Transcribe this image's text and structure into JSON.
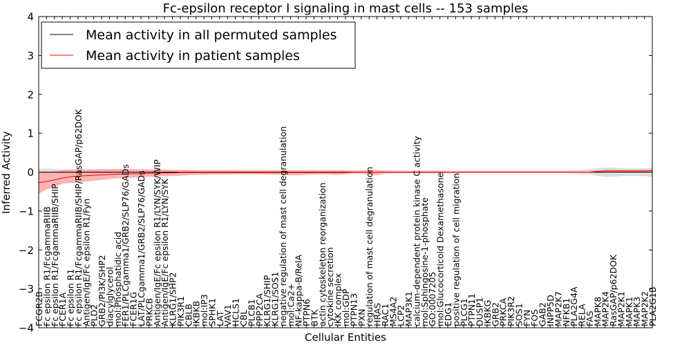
{
  "chart_data": {
    "type": "line",
    "title": "Fc-epsilon receptor I signaling in mast cells -- 153 samples",
    "xlabel": "Cellular Entities",
    "ylabel": "Inferred Activity",
    "ylim": [
      -4,
      4
    ],
    "yticks": [
      "−4",
      "−3",
      "−2",
      "−1",
      "0",
      "1",
      "2",
      "3",
      "4"
    ],
    "legend": {
      "placement": "top-left",
      "entries": [
        "Mean activity in all permuted samples",
        "Mean activity in patient samples"
      ]
    },
    "colors": {
      "permuted": "#000000",
      "patient": "#ff0000",
      "patient_band": "#ff9a9a",
      "permuted_band": "#c8c8c8"
    },
    "categories": [
      "FCGR2B",
      "Fc epsilon R1/FcgammaRIIB",
      "Fc epsilon R1/FcgammaRIIB/SHIP",
      "FCER1A",
      "Fc epsilon R1",
      "Fc epsilon R1/FcgammaRIIB/SHIP/RasGAP/p62DOK",
      "Antigen/IgE/Fc epsilon R1/Fyn",
      "PLD2",
      "GRB2/PI3K/SHP2",
      "diacylglycerol",
      "mol:Phosphatidic acid",
      "FER1/PLCgamma1/GRB2/SLP76/GADs",
      "FCER1G",
      "LAT/PLCgamma1/GRB2/SLP76/GADs",
      "PRKCB",
      "Antigen/IgE/Fc epsilon R1/LYN/SYK/WIP",
      "Antigen/IgE/Fc epsilon R1/LYN/SYK",
      "KLRG1/SHP2",
      "PIK3R1",
      "CBLB",
      "IKBKB",
      "mol:IP3",
      "SPHK1",
      "LAT",
      "VAV1",
      "HCLS1",
      "CBL",
      "PLCB1",
      "PPP2CA",
      "KLRG1/SHIP",
      "KLRG1/SOS1",
      "negative regulation of mast cell degranulation",
      "mol:Ca2+",
      "NF-kappa-B/RelA",
      "PTPN6",
      "BTK",
      "actin cytoskeleton reorganization",
      "cytokine secretion",
      "IKK complex",
      "mol:GDP",
      "PTPN13",
      "PXN",
      "regulation of mast cell degranulation",
      "HRAS",
      "RAC1",
      "MS4A2",
      "LCP2",
      "MAP3K1",
      "calcium-dependent protein kinase C activity",
      "mol:Sphingosine-1-phosphate",
      "GO:0007205",
      "mol:Glucocorticoid Dexamethasone",
      "EDG1",
      "positive regulation of cell migration",
      "PLCG1",
      "PTPN11",
      "DUSP1",
      "IKBKG",
      "GRB2",
      "PRKCA",
      "PIK3R2",
      "SOS1",
      "FYN",
      "FOS",
      "GAB2",
      "INPP5D",
      "MAP2K7",
      "NFKB1",
      "PLA2G4A",
      "RELA",
      "FAS",
      "MAPK8",
      "MAP2K4",
      "RasGAP/p62DOK",
      "MAP2K1",
      "MAPK1",
      "MAPK3",
      "MAP2K2",
      "PLA2G1B"
    ],
    "series": [
      {
        "name": "Mean activity in all permuted samples",
        "values": [
          0.0,
          0.0,
          0.0,
          0.0,
          0.0,
          0.0,
          0.0,
          0.0,
          0.0,
          0.0,
          0.0,
          0.0,
          0.0,
          0.0,
          0.0,
          0.0,
          0.0,
          0.0,
          0.0,
          0.0,
          0.0,
          0.0,
          0.0,
          0.0,
          0.0,
          0.0,
          0.0,
          0.0,
          0.0,
          0.0,
          0.0,
          0.0,
          0.0,
          0.0,
          0.0,
          0.0,
          0.0,
          0.0,
          0.0,
          0.0,
          0.0,
          0.0,
          0.0,
          0.0,
          0.0,
          0.0,
          0.0,
          0.0,
          0.0,
          0.0,
          0.0,
          0.0,
          0.0,
          0.0,
          0.0,
          0.0,
          0.0,
          0.0,
          0.0,
          0.0,
          0.0,
          0.0,
          0.0,
          0.0,
          0.0,
          0.0,
          0.0,
          0.0,
          0.0,
          0.0,
          0.0,
          0.0,
          0.0,
          0.0,
          0.0,
          0.0,
          0.0,
          0.0,
          0.0
        ],
        "lower": [
          -0.08,
          -0.08,
          -0.07,
          -0.06,
          -0.06,
          -0.05,
          -0.05,
          -0.05,
          -0.05,
          -0.04,
          -0.04,
          -0.04,
          -0.04,
          -0.04,
          -0.04,
          -0.03,
          -0.03,
          -0.03,
          -0.03,
          -0.03,
          -0.03,
          -0.03,
          -0.03,
          -0.03,
          -0.03,
          -0.03,
          -0.03,
          -0.03,
          -0.03,
          -0.03,
          -0.03,
          -0.03,
          -0.03,
          -0.03,
          -0.03,
          -0.03,
          -0.03,
          -0.03,
          -0.03,
          -0.03,
          -0.03,
          -0.03,
          -0.03,
          -0.03,
          -0.03,
          -0.03,
          -0.03,
          -0.03,
          -0.03,
          -0.03,
          -0.03,
          -0.03,
          -0.03,
          -0.03,
          -0.03,
          -0.03,
          -0.03,
          -0.03,
          -0.03,
          -0.03,
          -0.03,
          -0.03,
          -0.03,
          -0.03,
          -0.03,
          -0.03,
          -0.03,
          -0.03,
          -0.04,
          -0.05,
          -0.06,
          -0.09,
          -0.12,
          -0.12,
          -0.1,
          -0.1,
          -0.1,
          -0.1,
          -0.12
        ],
        "upper": [
          0.09,
          0.09,
          0.08,
          0.07,
          0.07,
          0.06,
          0.06,
          0.06,
          0.06,
          0.05,
          0.05,
          0.05,
          0.05,
          0.05,
          0.05,
          0.04,
          0.04,
          0.04,
          0.04,
          0.04,
          0.04,
          0.04,
          0.04,
          0.04,
          0.04,
          0.04,
          0.04,
          0.04,
          0.04,
          0.04,
          0.04,
          0.04,
          0.04,
          0.04,
          0.04,
          0.04,
          0.04,
          0.04,
          0.04,
          0.04,
          0.04,
          0.04,
          0.04,
          0.04,
          0.04,
          0.04,
          0.04,
          0.04,
          0.04,
          0.04,
          0.04,
          0.04,
          0.04,
          0.04,
          0.04,
          0.04,
          0.04,
          0.04,
          0.04,
          0.04,
          0.04,
          0.04,
          0.04,
          0.04,
          0.04,
          0.04,
          0.04,
          0.04,
          0.05,
          0.06,
          0.08,
          0.1,
          0.12,
          0.12,
          0.1,
          0.1,
          0.1,
          0.1,
          0.12
        ]
      },
      {
        "name": "Mean activity in patient samples",
        "values": [
          -0.27,
          -0.24,
          -0.2,
          -0.15,
          -0.12,
          -0.1,
          -0.09,
          -0.08,
          -0.07,
          -0.06,
          -0.05,
          -0.05,
          -0.04,
          -0.04,
          -0.03,
          -0.03,
          -0.02,
          -0.02,
          -0.01,
          -0.01,
          -0.01,
          -0.01,
          -0.01,
          -0.01,
          -0.01,
          -0.01,
          -0.01,
          -0.01,
          -0.01,
          -0.01,
          -0.01,
          -0.01,
          -0.01,
          -0.01,
          -0.01,
          -0.01,
          -0.01,
          -0.01,
          -0.01,
          -0.01,
          0.0,
          0.0,
          0.0,
          0.0,
          0.0,
          0.0,
          0.0,
          0.0,
          0.0,
          0.0,
          0.0,
          0.0,
          0.0,
          0.0,
          0.0,
          0.0,
          0.0,
          0.0,
          0.0,
          0.0,
          0.0,
          0.0,
          0.0,
          0.0,
          0.0,
          0.0,
          0.0,
          0.0,
          0.0,
          0.0,
          0.0,
          0.02,
          0.03,
          0.03,
          0.03,
          0.03,
          0.03,
          0.03,
          0.04
        ],
        "lower": [
          -0.55,
          -0.45,
          -0.38,
          -0.3,
          -0.28,
          -0.26,
          -0.24,
          -0.22,
          -0.2,
          -0.18,
          -0.16,
          -0.15,
          -0.14,
          -0.13,
          -0.12,
          -0.12,
          -0.1,
          -0.1,
          -0.09,
          -0.08,
          -0.07,
          -0.07,
          -0.06,
          -0.06,
          -0.06,
          -0.05,
          -0.05,
          -0.05,
          -0.05,
          -0.06,
          -0.06,
          -0.07,
          -0.08,
          -0.08,
          -0.07,
          -0.06,
          -0.05,
          -0.06,
          -0.07,
          -0.05,
          -0.04,
          -0.04,
          -0.06,
          -0.08,
          -0.04,
          -0.03,
          -0.03,
          -0.03,
          -0.03,
          -0.03,
          -0.03,
          -0.03,
          -0.02,
          -0.02,
          -0.02,
          -0.02,
          -0.02,
          -0.02,
          -0.02,
          -0.02,
          -0.02,
          -0.02,
          -0.02,
          -0.02,
          -0.02,
          -0.02,
          -0.02,
          -0.02,
          -0.02,
          -0.02,
          -0.02,
          -0.02,
          -0.01,
          -0.01,
          -0.01,
          -0.01,
          -0.01,
          -0.01,
          -0.01
        ],
        "upper": [
          0.0,
          0.0,
          0.02,
          0.05,
          0.06,
          0.07,
          0.07,
          0.07,
          0.08,
          0.08,
          0.08,
          0.08,
          0.08,
          0.07,
          0.07,
          0.07,
          0.07,
          0.06,
          0.06,
          0.06,
          0.05,
          0.05,
          0.05,
          0.05,
          0.05,
          0.05,
          0.05,
          0.05,
          0.05,
          0.05,
          0.05,
          0.05,
          0.05,
          0.05,
          0.05,
          0.05,
          0.05,
          0.05,
          0.05,
          0.05,
          0.04,
          0.05,
          0.05,
          0.06,
          0.04,
          0.03,
          0.03,
          0.03,
          0.03,
          0.03,
          0.03,
          0.03,
          0.02,
          0.02,
          0.02,
          0.02,
          0.02,
          0.02,
          0.02,
          0.02,
          0.02,
          0.02,
          0.02,
          0.02,
          0.02,
          0.02,
          0.02,
          0.02,
          0.02,
          0.02,
          0.02,
          0.04,
          0.06,
          0.06,
          0.06,
          0.06,
          0.06,
          0.06,
          0.07
        ]
      }
    ]
  }
}
